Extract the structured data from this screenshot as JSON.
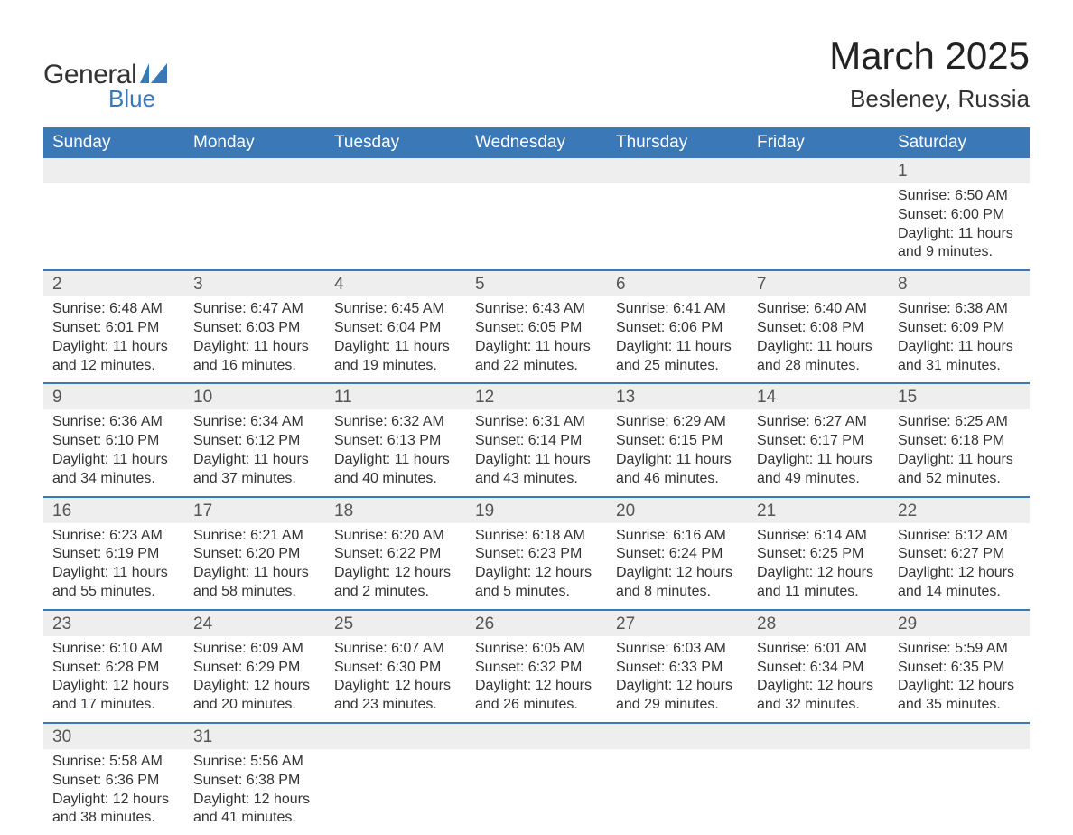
{
  "logo": {
    "text1": "General",
    "text2": "Blue",
    "accent_color": "#3a78b8"
  },
  "title": "March 2025",
  "location": "Besleney, Russia",
  "colors": {
    "header_bg": "#3a78b8",
    "header_fg": "#ffffff",
    "daynum_bg": "#eeeeee",
    "row_border": "#3a78b8",
    "text": "#333333",
    "page_bg": "#ffffff"
  },
  "fonts": {
    "family": "Arial",
    "title_size_pt": 32,
    "location_size_pt": 20,
    "header_size_pt": 14,
    "body_size_pt": 12
  },
  "weekdays": [
    "Sunday",
    "Monday",
    "Tuesday",
    "Wednesday",
    "Thursday",
    "Friday",
    "Saturday"
  ],
  "weeks": [
    [
      null,
      null,
      null,
      null,
      null,
      null,
      {
        "n": "1",
        "sunrise": "6:50 AM",
        "sunset": "6:00 PM",
        "daylight": "11 hours and 9 minutes."
      }
    ],
    [
      {
        "n": "2",
        "sunrise": "6:48 AM",
        "sunset": "6:01 PM",
        "daylight": "11 hours and 12 minutes."
      },
      {
        "n": "3",
        "sunrise": "6:47 AM",
        "sunset": "6:03 PM",
        "daylight": "11 hours and 16 minutes."
      },
      {
        "n": "4",
        "sunrise": "6:45 AM",
        "sunset": "6:04 PM",
        "daylight": "11 hours and 19 minutes."
      },
      {
        "n": "5",
        "sunrise": "6:43 AM",
        "sunset": "6:05 PM",
        "daylight": "11 hours and 22 minutes."
      },
      {
        "n": "6",
        "sunrise": "6:41 AM",
        "sunset": "6:06 PM",
        "daylight": "11 hours and 25 minutes."
      },
      {
        "n": "7",
        "sunrise": "6:40 AM",
        "sunset": "6:08 PM",
        "daylight": "11 hours and 28 minutes."
      },
      {
        "n": "8",
        "sunrise": "6:38 AM",
        "sunset": "6:09 PM",
        "daylight": "11 hours and 31 minutes."
      }
    ],
    [
      {
        "n": "9",
        "sunrise": "6:36 AM",
        "sunset": "6:10 PM",
        "daylight": "11 hours and 34 minutes."
      },
      {
        "n": "10",
        "sunrise": "6:34 AM",
        "sunset": "6:12 PM",
        "daylight": "11 hours and 37 minutes."
      },
      {
        "n": "11",
        "sunrise": "6:32 AM",
        "sunset": "6:13 PM",
        "daylight": "11 hours and 40 minutes."
      },
      {
        "n": "12",
        "sunrise": "6:31 AM",
        "sunset": "6:14 PM",
        "daylight": "11 hours and 43 minutes."
      },
      {
        "n": "13",
        "sunrise": "6:29 AM",
        "sunset": "6:15 PM",
        "daylight": "11 hours and 46 minutes."
      },
      {
        "n": "14",
        "sunrise": "6:27 AM",
        "sunset": "6:17 PM",
        "daylight": "11 hours and 49 minutes."
      },
      {
        "n": "15",
        "sunrise": "6:25 AM",
        "sunset": "6:18 PM",
        "daylight": "11 hours and 52 minutes."
      }
    ],
    [
      {
        "n": "16",
        "sunrise": "6:23 AM",
        "sunset": "6:19 PM",
        "daylight": "11 hours and 55 minutes."
      },
      {
        "n": "17",
        "sunrise": "6:21 AM",
        "sunset": "6:20 PM",
        "daylight": "11 hours and 58 minutes."
      },
      {
        "n": "18",
        "sunrise": "6:20 AM",
        "sunset": "6:22 PM",
        "daylight": "12 hours and 2 minutes."
      },
      {
        "n": "19",
        "sunrise": "6:18 AM",
        "sunset": "6:23 PM",
        "daylight": "12 hours and 5 minutes."
      },
      {
        "n": "20",
        "sunrise": "6:16 AM",
        "sunset": "6:24 PM",
        "daylight": "12 hours and 8 minutes."
      },
      {
        "n": "21",
        "sunrise": "6:14 AM",
        "sunset": "6:25 PM",
        "daylight": "12 hours and 11 minutes."
      },
      {
        "n": "22",
        "sunrise": "6:12 AM",
        "sunset": "6:27 PM",
        "daylight": "12 hours and 14 minutes."
      }
    ],
    [
      {
        "n": "23",
        "sunrise": "6:10 AM",
        "sunset": "6:28 PM",
        "daylight": "12 hours and 17 minutes."
      },
      {
        "n": "24",
        "sunrise": "6:09 AM",
        "sunset": "6:29 PM",
        "daylight": "12 hours and 20 minutes."
      },
      {
        "n": "25",
        "sunrise": "6:07 AM",
        "sunset": "6:30 PM",
        "daylight": "12 hours and 23 minutes."
      },
      {
        "n": "26",
        "sunrise": "6:05 AM",
        "sunset": "6:32 PM",
        "daylight": "12 hours and 26 minutes."
      },
      {
        "n": "27",
        "sunrise": "6:03 AM",
        "sunset": "6:33 PM",
        "daylight": "12 hours and 29 minutes."
      },
      {
        "n": "28",
        "sunrise": "6:01 AM",
        "sunset": "6:34 PM",
        "daylight": "12 hours and 32 minutes."
      },
      {
        "n": "29",
        "sunrise": "5:59 AM",
        "sunset": "6:35 PM",
        "daylight": "12 hours and 35 minutes."
      }
    ],
    [
      {
        "n": "30",
        "sunrise": "5:58 AM",
        "sunset": "6:36 PM",
        "daylight": "12 hours and 38 minutes."
      },
      {
        "n": "31",
        "sunrise": "5:56 AM",
        "sunset": "6:38 PM",
        "daylight": "12 hours and 41 minutes."
      },
      null,
      null,
      null,
      null,
      null
    ]
  ],
  "labels": {
    "sunrise": "Sunrise: ",
    "sunset": "Sunset: ",
    "daylight": "Daylight: "
  }
}
